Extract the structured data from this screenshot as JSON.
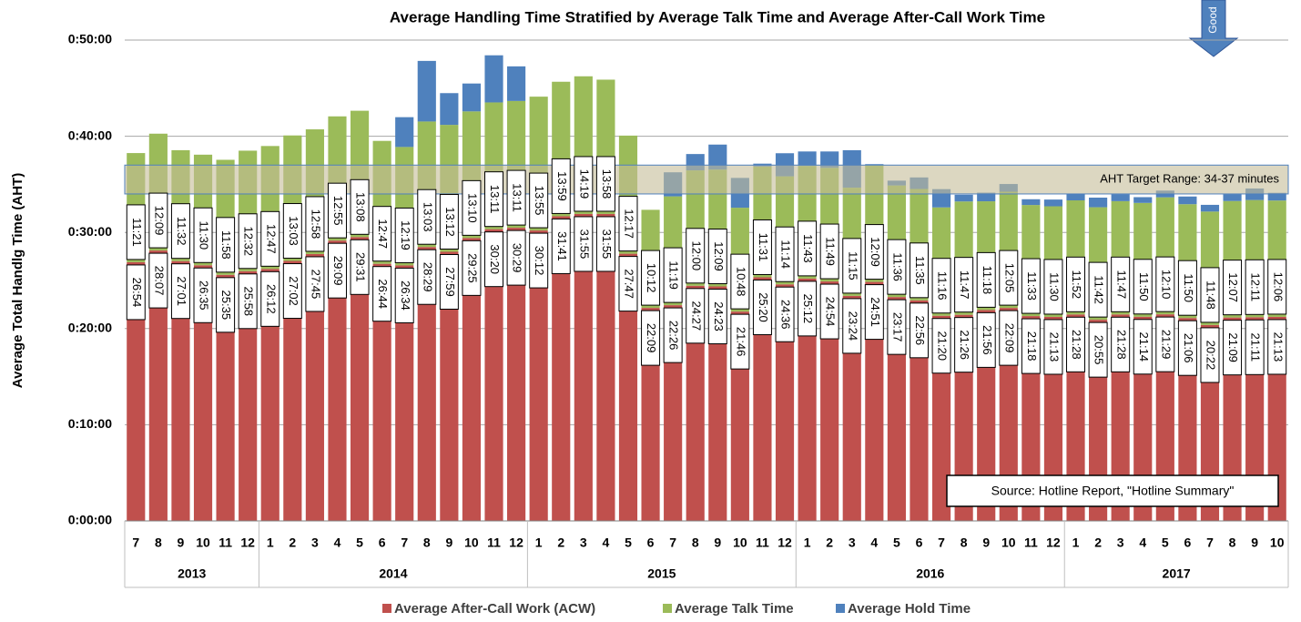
{
  "chart_data": {
    "type": "stacked_bar",
    "title": "Average Handling Time Stratified by Average Talk Time and Average After-Call Work Time",
    "y_label": "Average Total Handlg Time (AHT)",
    "categories": [
      "7",
      "8",
      "9",
      "10",
      "11",
      "12",
      "1",
      "2",
      "3",
      "4",
      "5",
      "6",
      "7",
      "8",
      "9",
      "10",
      "11",
      "12",
      "1",
      "2",
      "3",
      "4",
      "5",
      "6",
      "7",
      "8",
      "9",
      "10",
      "11",
      "12",
      "1",
      "2",
      "3",
      "4",
      "5",
      "6",
      "7",
      "8",
      "9",
      "10",
      "11",
      "12",
      "1",
      "2",
      "3",
      "4",
      "5",
      "6",
      "7",
      "8",
      "9",
      "10"
    ],
    "years": [
      "2013",
      "2014",
      "2015",
      "2016",
      "2017"
    ],
    "ylim": [
      0,
      50
    ],
    "yticks": [
      {
        "value": 0,
        "label": "0:00:00"
      },
      {
        "value": 10,
        "label": "0:10:00"
      },
      {
        "value": 20,
        "label": "0:20:00"
      },
      {
        "value": 30,
        "label": "0:30:00"
      },
      {
        "value": 40,
        "label": "0:40:00"
      },
      {
        "value": 50,
        "label": "0:50:00"
      }
    ],
    "grid": true,
    "series": [
      {
        "name": "Average After-Call Work (ACW)",
        "color": "#c0504d",
        "values": [
          26.9,
          28.1167,
          27.0167,
          26.5833,
          25.5833,
          25.9667,
          26.2,
          27.0333,
          27.75,
          29.15,
          29.5167,
          26.7333,
          26.5667,
          28.4833,
          27.9833,
          29.4167,
          30.3333,
          30.4833,
          30.2,
          31.6833,
          31.9167,
          31.9167,
          27.7833,
          22.15,
          22.4333,
          24.45,
          24.3833,
          21.7667,
          25.3333,
          24.6,
          25.2,
          24.9,
          23.4,
          24.85,
          23.2833,
          22.9333,
          21.3333,
          21.4333,
          21.9333,
          22.15,
          21.3,
          21.2167,
          21.4667,
          20.9167,
          21.4667,
          21.2333,
          21.4833,
          21.1,
          20.3667,
          21.15,
          21.1833,
          21.2167
        ],
        "value_labels": [
          "26:54",
          "28:07",
          "27:01",
          "26:35",
          "25:35",
          "25:58",
          "26:12",
          "27:02",
          "27:45",
          "29:09",
          "29:31",
          "26:44",
          "26:34",
          "28:29",
          "27:59",
          "29:25",
          "30:20",
          "30:29",
          "30:12",
          "31:41",
          "31:55",
          "31:55",
          "27:47",
          "22:09",
          "22:26",
          "24:27",
          "24:23",
          "21:46",
          "25:20",
          "24:36",
          "25:12",
          "24:54",
          "23:24",
          "24:51",
          "23:17",
          "22:56",
          "21:20",
          "21:26",
          "21:56",
          "22:09",
          "21:18",
          "21:13",
          "21:28",
          "20:55",
          "21:28",
          "21:14",
          "21:29",
          "21:06",
          "20:22",
          "21:09",
          "21:11",
          "21:13"
        ]
      },
      {
        "name": "Average Talk Time",
        "color": "#9bbb59",
        "values": [
          11.35,
          12.15,
          11.5333,
          11.5,
          11.9667,
          12.5333,
          12.7833,
          13.05,
          12.9667,
          12.9167,
          13.1333,
          12.7833,
          12.3167,
          13.05,
          13.2,
          13.1667,
          13.1833,
          13.1833,
          13.9167,
          13.9833,
          14.3167,
          13.9667,
          12.2833,
          10.2,
          11.3167,
          12,
          12.15,
          10.8,
          11.5167,
          11.2333,
          11.7167,
          11.8167,
          11.25,
          12.15,
          11.6,
          11.5833,
          11.2667,
          11.7833,
          11.3,
          12.0833,
          11.55,
          11.5,
          11.8667,
          11.7,
          11.7833,
          11.8333,
          12.1667,
          11.8333,
          11.8,
          12.1167,
          12.1833,
          12.1
        ],
        "value_labels": [
          "11:21",
          "12:09",
          "11:32",
          "11:30",
          "11:58",
          "12:32",
          "12:47",
          "13:03",
          "12:58",
          "12:55",
          "13:08",
          "12:47",
          "12:19",
          "13:03",
          "13:12",
          "13:10",
          "13:11",
          "13:11",
          "13:55",
          "13:59",
          "14:19",
          "13:58",
          "12:17",
          "10:12",
          "11:19",
          "12:00",
          "12:09",
          "10:48",
          "11:31",
          "11:14",
          "11:43",
          "11:49",
          "11:15",
          "12:09",
          "11:36",
          "11:35",
          "11:16",
          "11:47",
          "11:18",
          "12:05",
          "11:33",
          "11:30",
          "11:52",
          "11:42",
          "11:47",
          "11:50",
          "12:10",
          "11:50",
          "11:48",
          "12:07",
          "12:11",
          "12:06"
        ]
      },
      {
        "name": "Average Hold Time",
        "color": "#4f81bd",
        "values": [
          0,
          0,
          0,
          0,
          0,
          0,
          0,
          0,
          0,
          0,
          0,
          0,
          3.1,
          6.3,
          3.3,
          2.9,
          4.9,
          3.6,
          0,
          0,
          0,
          0,
          0,
          0,
          2.5,
          1.7,
          2.6,
          3.1,
          0.3,
          2.4,
          1.5,
          1.7,
          3.9,
          0.1,
          0.5,
          1.2,
          1.9,
          0.7,
          0.9,
          0.8,
          0.6,
          0.7,
          0.7,
          1.0,
          0.7,
          0.6,
          0.7,
          0.8,
          0.7,
          0.7,
          1.2,
          0.8
        ]
      }
    ],
    "target_range": {
      "label": "AHT Target Range: 34-37 minutes",
      "from": 34,
      "to": 37
    },
    "arrow_label": "Good",
    "source": "Source: Hotline Report, \"Hotline Summary\""
  }
}
